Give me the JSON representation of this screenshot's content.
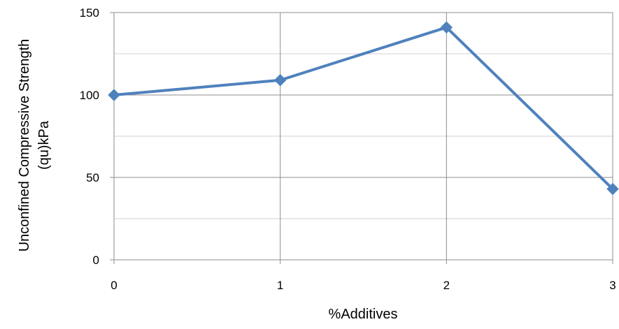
{
  "chart_data": {
    "type": "line",
    "title": "",
    "xlabel": "%Additives",
    "ylabel_lines": [
      "Unconfined Compressive Strength",
      "(qu)kPa"
    ],
    "x": [
      0,
      1,
      2,
      3
    ],
    "xlim": [
      0,
      3
    ],
    "xticks": [
      "0",
      "1",
      "2",
      "3"
    ],
    "ylim": [
      0,
      150
    ],
    "yticks": [
      "0",
      "50",
      "100",
      "150"
    ],
    "y_minor_step": 25,
    "grid": true,
    "legend": "none",
    "marker": "diamond",
    "series": [
      {
        "values": [
          100,
          109,
          141,
          43
        ],
        "color": "#4F81BD"
      }
    ],
    "colors": {
      "line": "#4F81BD",
      "major_grid": "#8c8c8c",
      "minor_grid": "#d0d0d0"
    }
  }
}
